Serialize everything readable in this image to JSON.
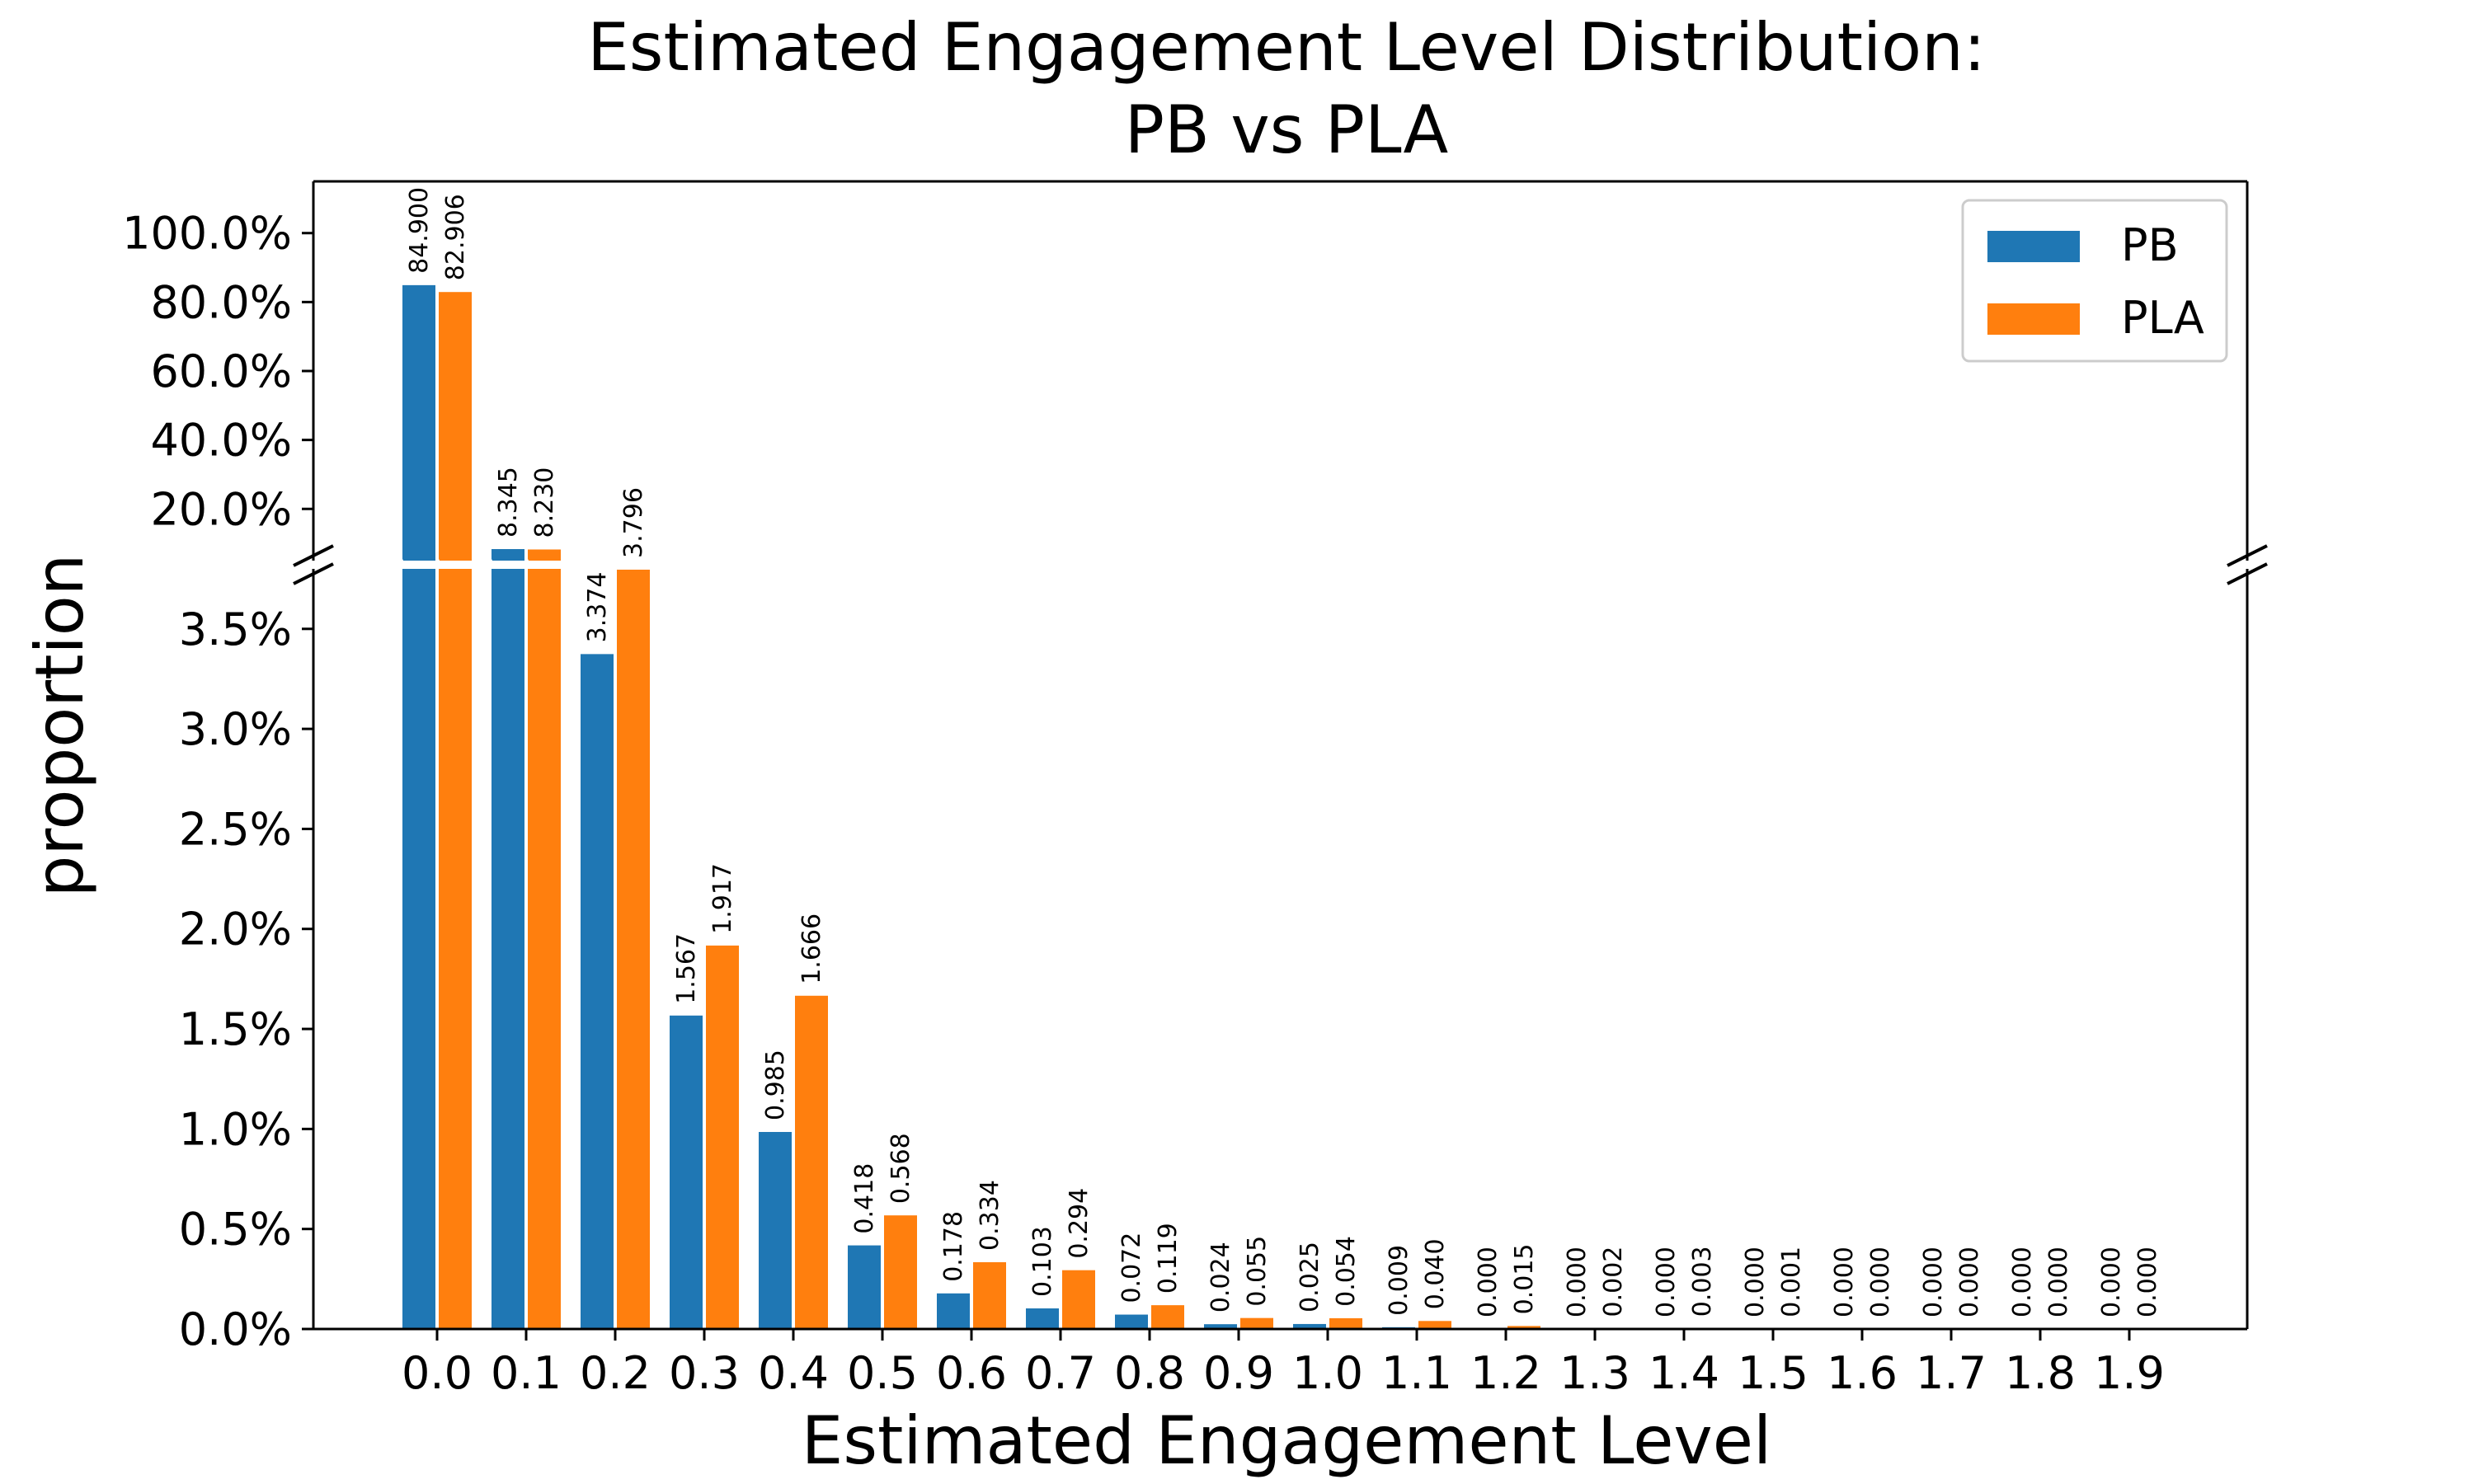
{
  "chart_data": {
    "type": "bar",
    "title": [
      "Estimated Engagement Level Distribution:",
      "PB vs PLA"
    ],
    "xlabel": "Estimated Engagement Level",
    "ylabel": "proportion",
    "categories": [
      "0.0",
      "0.1",
      "0.2",
      "0.3",
      "0.4",
      "0.5",
      "0.6",
      "0.7",
      "0.8",
      "0.9",
      "1.0",
      "1.1",
      "1.2",
      "1.3",
      "1.4",
      "1.5",
      "1.6",
      "1.7",
      "1.8",
      "1.9"
    ],
    "series": [
      {
        "name": "PB",
        "color": "#1f77b4",
        "values": [
          84.9,
          8.345,
          3.374,
          1.567,
          0.985,
          0.418,
          0.178,
          0.103,
          0.072,
          0.024,
          0.025,
          0.009,
          0.0,
          0.0,
          0.0,
          0.0,
          0.0,
          0.0,
          0.0,
          0.0
        ],
        "labels": [
          "84.900",
          "8.345",
          "3.374",
          "1.567",
          "0.985",
          "0.418",
          "0.178",
          "0.103",
          "0.072",
          "0.024",
          "0.025",
          "0.009",
          "0.000",
          "0.000",
          "0.000",
          "0.000",
          "0.000",
          "0.000",
          "0.000",
          "0.000"
        ]
      },
      {
        "name": "PLA",
        "color": "#ff7f0e",
        "values": [
          82.906,
          8.23,
          3.796,
          1.917,
          1.666,
          0.568,
          0.334,
          0.294,
          0.119,
          0.055,
          0.054,
          0.04,
          0.015,
          0.002,
          0.003,
          0.001,
          0.0,
          0.0,
          0.0,
          0.0
        ],
        "labels": [
          "82.906",
          "8.230",
          "3.796",
          "1.917",
          "1.666",
          "0.568",
          "0.334",
          "0.294",
          "0.119",
          "0.055",
          "0.054",
          "0.040",
          "0.015",
          "0.002",
          "0.003",
          "0.001",
          "0.000",
          "0.000",
          "0.000",
          "0.000"
        ]
      }
    ],
    "broken_axis": true,
    "upper_ticks": [
      "20.0%",
      "40.0%",
      "60.0%",
      "80.0%",
      "100.0%"
    ],
    "upper_tick_values": [
      20,
      40,
      60,
      80,
      100
    ],
    "lower_ticks": [
      "0.0%",
      "0.5%",
      "1.0%",
      "1.5%",
      "2.0%",
      "2.5%",
      "3.0%",
      "3.5%"
    ],
    "lower_tick_values": [
      0,
      0.5,
      1.0,
      1.5,
      2.0,
      2.5,
      3.0,
      3.5
    ],
    "ylim_upper": [
      5,
      115
    ],
    "ylim_lower": [
      0,
      3.8
    ],
    "legend_position": "top-right",
    "grid": false
  }
}
